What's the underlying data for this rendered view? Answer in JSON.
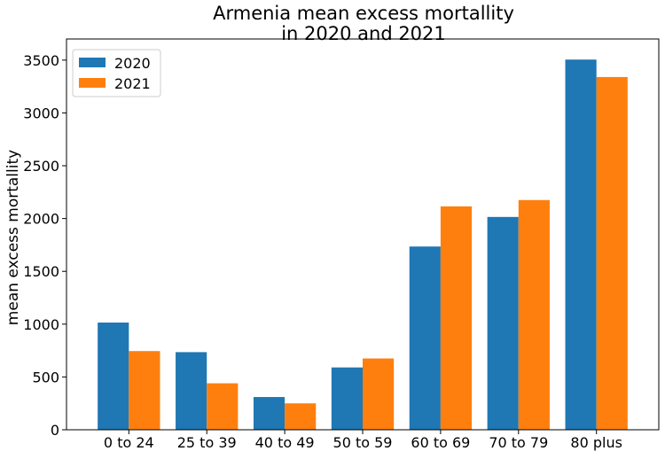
{
  "chart_data": {
    "type": "bar",
    "title": "Armenia mean excess mortallity\nin 2020 and 2021",
    "title_lines": [
      "Armenia mean excess mortallity",
      "in 2020 and 2021"
    ],
    "xlabel": "",
    "ylabel": "mean excess mortallity",
    "categories": [
      "0 to 24",
      "25 to 39",
      "40 to 49",
      "50 to 59",
      "60 to 69",
      "70 to 79",
      "80 plus"
    ],
    "series": [
      {
        "name": "2020",
        "color": "#1f77b4",
        "values": [
          1015,
          735,
          310,
          590,
          1735,
          2015,
          3505
        ]
      },
      {
        "name": "2021",
        "color": "#ff7f0e",
        "values": [
          745,
          440,
          250,
          675,
          2115,
          2175,
          3340
        ]
      }
    ],
    "ylim": [
      0,
      3700
    ],
    "yticks": [
      0,
      500,
      1000,
      1500,
      2000,
      2500,
      3000,
      3500
    ],
    "grid": false,
    "legend_position": "top-left"
  }
}
